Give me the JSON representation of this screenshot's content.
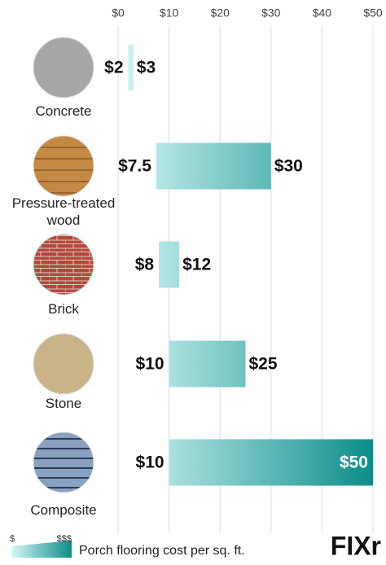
{
  "chart_data": {
    "type": "range-bar",
    "categories": [
      "Concrete",
      "Pressure-treated wood",
      "Brick",
      "Stone",
      "Composite"
    ],
    "low_values": [
      2,
      7.5,
      8,
      10,
      10
    ],
    "high_values": [
      3,
      30,
      12,
      25,
      50
    ],
    "low_value_labels": [
      "$2",
      "$7.5",
      "$8",
      "$10",
      "$10"
    ],
    "high_value_labels": [
      "$3",
      "$30",
      "$12",
      "$25",
      "$50"
    ],
    "xlim": [
      0,
      50
    ],
    "xticks": [
      {
        "value": 0,
        "label": "$0"
      },
      {
        "value": 10,
        "label": "$10"
      },
      {
        "value": 20,
        "label": "$20"
      },
      {
        "value": 30,
        "label": "$30"
      },
      {
        "value": 40,
        "label": "$40"
      },
      {
        "value": 50,
        "label": "$50"
      }
    ],
    "grid": true,
    "color_low": "#d3f6f5",
    "color_high": "#0c8d8a",
    "legend": {
      "low_label": "$",
      "high_label": "$$$",
      "text": "Porch flooring cost per sq. ft."
    },
    "logo": "FIXr"
  }
}
